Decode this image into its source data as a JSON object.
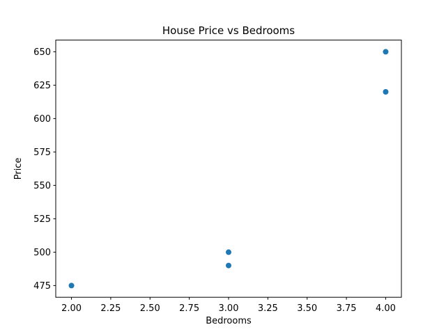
{
  "chart_data": {
    "type": "scatter",
    "title": "House Price vs Bedrooms",
    "xlabel": "Bedrooms",
    "ylabel": "Price",
    "points": [
      {
        "x": 2.0,
        "y": 475
      },
      {
        "x": 3.0,
        "y": 490
      },
      {
        "x": 3.0,
        "y": 500
      },
      {
        "x": 4.0,
        "y": 620
      },
      {
        "x": 4.0,
        "y": 650
      }
    ],
    "xlim": [
      1.9,
      4.1
    ],
    "ylim": [
      466.25,
      658.75
    ],
    "xticks": [
      2.0,
      2.25,
      2.5,
      2.75,
      3.0,
      3.25,
      3.5,
      3.75,
      4.0
    ],
    "xtick_labels": [
      "2.00",
      "2.25",
      "2.50",
      "2.75",
      "3.00",
      "3.25",
      "3.50",
      "3.75",
      "4.00"
    ],
    "yticks": [
      475,
      500,
      525,
      550,
      575,
      600,
      625,
      650
    ],
    "ytick_labels": [
      "475",
      "500",
      "525",
      "550",
      "575",
      "600",
      "625",
      "650"
    ],
    "grid": false,
    "legend": null,
    "marker_color": "#1f77b4",
    "axes_color": "#000000",
    "background_color": "#ffffff"
  }
}
